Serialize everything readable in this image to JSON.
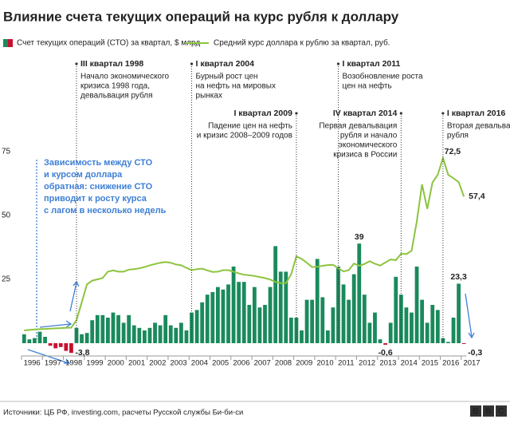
{
  "chart_data": {
    "type": "bar_line",
    "title": "Влияние счета текущих операций на курс рубля к доллару",
    "x_labels": [
      "1996",
      "1997",
      "1998",
      "1999",
      "2000",
      "2001",
      "2002",
      "2003",
      "2004",
      "2005",
      "2006",
      "2007",
      "2008",
      "2009",
      "2010",
      "2011",
      "2012",
      "2013",
      "2014",
      "2015",
      "2016",
      "2017"
    ],
    "series": [
      {
        "name": "Счет текущих операций (СТО) за квартал, $ млрд",
        "type": "bar",
        "color": "#1a8a5c",
        "negative_color": "#c8102e",
        "values": [
          3.5,
          1.5,
          2,
          4.5,
          2.5,
          -1,
          -2,
          -1.5,
          -3,
          -3.8,
          6,
          3.5,
          4,
          9,
          11,
          11,
          10,
          12,
          11,
          8,
          11,
          7,
          6,
          5,
          6,
          8,
          7,
          11,
          7,
          6,
          8,
          5,
          12,
          13,
          16,
          19,
          20,
          22,
          21,
          23,
          30,
          24,
          24,
          15,
          22,
          14,
          15,
          22,
          38,
          28,
          28,
          10,
          10,
          5,
          17,
          17,
          33,
          18,
          5,
          14,
          30,
          23,
          17,
          27,
          39,
          19,
          8,
          12,
          1.5,
          -0.6,
          8,
          26,
          19,
          14,
          12,
          30,
          17,
          8,
          15,
          13,
          2,
          0.5,
          10,
          23.3,
          -0.3
        ],
        "value_labels": [
          null,
          null,
          null,
          null,
          null,
          null,
          null,
          null,
          null,
          "-3,8",
          null,
          null,
          null,
          null,
          null,
          null,
          null,
          null,
          null,
          null,
          null,
          null,
          null,
          null,
          null,
          null,
          null,
          null,
          null,
          null,
          null,
          null,
          null,
          null,
          null,
          null,
          null,
          null,
          null,
          null,
          null,
          null,
          null,
          null,
          null,
          null,
          null,
          null,
          null,
          null,
          null,
          null,
          null,
          null,
          null,
          null,
          null,
          null,
          null,
          null,
          null,
          null,
          null,
          null,
          "39",
          null,
          null,
          null,
          null,
          "-0,6",
          null,
          null,
          null,
          null,
          null,
          null,
          null,
          null,
          null,
          null,
          null,
          null,
          null,
          "23,3",
          "-0,3"
        ]
      },
      {
        "name": "Средний курс доллара к рублю за квартал, руб.",
        "type": "line",
        "color": "#8cc43f",
        "values": [
          5,
          5.2,
          5.4,
          5.5,
          5.6,
          5.7,
          5.8,
          5.9,
          6,
          6.1,
          9,
          16,
          23,
          24.5,
          25,
          25.5,
          28,
          28.5,
          28,
          28,
          28.8,
          29,
          29.3,
          29.8,
          30.5,
          31,
          31.5,
          31.8,
          31.5,
          30.8,
          30.5,
          29.5,
          28.6,
          29,
          29.2,
          28.5,
          27.9,
          28,
          28.6,
          28.6,
          28,
          27.3,
          26.8,
          26.6,
          26.3,
          25.9,
          25.5,
          24.9,
          24,
          23.5,
          23.5,
          27,
          34,
          33,
          31.5,
          29.8,
          29.9,
          30.3,
          30.6,
          30.7,
          29.3,
          28.1,
          28.6,
          31.2,
          30.3,
          31,
          32.1,
          31.1,
          30.4,
          31.6,
          32.8,
          32.5,
          35,
          34.9,
          36.2,
          47.6,
          62.2,
          52.6,
          62.9,
          65.9,
          72.5,
          65.9,
          64.6,
          63.1,
          57.4
        ],
        "value_labels": [
          null,
          null,
          null,
          null,
          null,
          null,
          null,
          null,
          null,
          null,
          null,
          null,
          null,
          null,
          null,
          null,
          null,
          null,
          null,
          null,
          null,
          null,
          null,
          null,
          null,
          null,
          null,
          null,
          null,
          null,
          null,
          null,
          null,
          null,
          null,
          null,
          null,
          null,
          null,
          null,
          null,
          null,
          null,
          null,
          null,
          null,
          null,
          null,
          null,
          null,
          null,
          null,
          null,
          null,
          null,
          null,
          null,
          null,
          null,
          null,
          null,
          null,
          null,
          null,
          null,
          null,
          null,
          null,
          null,
          null,
          null,
          null,
          null,
          null,
          null,
          null,
          null,
          null,
          null,
          null,
          "72,5",
          null,
          null,
          null,
          "57,4"
        ]
      }
    ],
    "ylim": [
      -5,
      80
    ],
    "yticks": [
      25,
      50,
      75
    ],
    "grid": false,
    "annotations": [
      {
        "label": "III квартал 1998",
        "text": [
          "Начало экономического",
          "кризиса 1998 года,",
          "девальвация рубля"
        ]
      },
      {
        "label": "I квартал 2004",
        "text": [
          "Бурный рост цен",
          "на нефть на мировых",
          "рынках"
        ]
      },
      {
        "label": "I квартал 2011",
        "text": [
          "Возобновление роста",
          "цен на нефть"
        ]
      },
      {
        "label": "I квартал 2009",
        "text": [
          "Падение цен на нефть",
          "и кризис 2008–2009 годов"
        ]
      },
      {
        "label": "IV квартал 2014",
        "text": [
          "Первая девальвация",
          "рубля и начало",
          "экономического",
          "кризиса в России"
        ]
      },
      {
        "label": "I квартал 2016",
        "text": [
          "Вторая девальвация",
          "рубля"
        ]
      }
    ],
    "note": [
      "Зависимость между СТО",
      "и курсом доллара",
      "обратная: снижение СТО",
      "приводит к росту курса",
      "с лагом в несколько недель"
    ],
    "source": "Источники: ЦБ РФ, investing.com, расчеты Русской службы Би-би-си",
    "logo": [
      "B",
      "B",
      "C"
    ]
  }
}
